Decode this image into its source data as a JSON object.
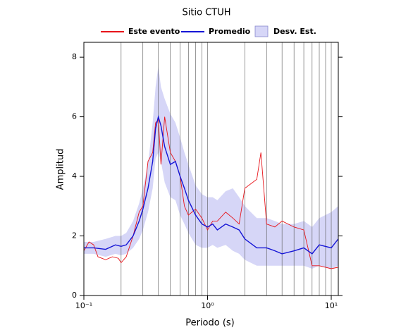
{
  "chart_data": {
    "type": "line",
    "title": "Sitio CTUH",
    "x_label": "Periodo (s)",
    "y_label": "Amplitud",
    "xscale": "log",
    "xlim": [
      0.1,
      11.4
    ],
    "ylim": [
      0,
      8.5
    ],
    "grid": "x",
    "xticks": [
      {
        "value": 0.1,
        "label": "10⁻¹"
      },
      {
        "value": 1,
        "label": "10⁰"
      },
      {
        "value": 10,
        "label": "10¹"
      }
    ],
    "xminor": [
      0.2,
      0.3,
      0.4,
      0.5,
      0.6,
      0.7,
      0.8,
      0.9,
      2,
      3,
      4,
      5,
      6,
      7,
      8,
      9
    ],
    "yticks": [
      0,
      2,
      4,
      6,
      8
    ],
    "x": [
      0.1,
      0.12,
      0.15,
      0.18,
      0.2,
      0.22,
      0.25,
      0.28,
      0.3,
      0.33,
      0.36,
      0.38,
      0.4,
      0.42,
      0.45,
      0.5,
      0.55,
      0.6,
      0.65,
      0.7,
      0.8,
      0.9,
      1.0,
      1.1,
      1.2,
      1.4,
      1.6,
      1.8,
      2.0,
      2.5,
      3.0,
      3.5,
      4.0,
      5.0,
      6.0,
      7.0,
      8.0,
      10,
      11.4
    ],
    "band": {
      "name": "Desv. Est.",
      "color": "#d6d6f7",
      "lower": [
        1.4,
        1.4,
        1.3,
        1.4,
        1.35,
        1.4,
        1.6,
        1.9,
        2.2,
        2.8,
        3.6,
        4.6,
        4.8,
        4.5,
        3.8,
        3.3,
        3.2,
        2.7,
        2.4,
        2.1,
        1.7,
        1.6,
        1.6,
        1.7,
        1.6,
        1.7,
        1.5,
        1.4,
        1.2,
        1.0,
        1.0,
        1.0,
        1.0,
        1.0,
        1.0,
        0.9,
        1.0,
        0.9,
        1.0
      ],
      "upper": [
        1.8,
        1.8,
        1.9,
        2.0,
        2.0,
        2.1,
        2.5,
        3.1,
        3.6,
        4.4,
        5.8,
        7.0,
        7.7,
        7.0,
        6.6,
        6.1,
        5.8,
        5.3,
        4.8,
        4.4,
        3.7,
        3.4,
        3.3,
        3.3,
        3.2,
        3.5,
        3.6,
        3.3,
        3.0,
        2.6,
        2.6,
        2.5,
        2.4,
        2.4,
        2.5,
        2.3,
        2.6,
        2.8,
        3.0
      ]
    },
    "series": [
      {
        "name": "Este evento",
        "color": "#e8141a",
        "x": [
          0.1,
          0.11,
          0.12,
          0.13,
          0.15,
          0.17,
          0.19,
          0.2,
          0.22,
          0.25,
          0.28,
          0.3,
          0.33,
          0.36,
          0.38,
          0.4,
          0.42,
          0.45,
          0.5,
          0.55,
          0.6,
          0.65,
          0.7,
          0.8,
          0.9,
          1.0,
          1.1,
          1.2,
          1.4,
          1.6,
          1.8,
          2.0,
          2.5,
          2.7,
          3.0,
          3.5,
          4.0,
          5.0,
          6.0,
          7.0,
          8.0,
          10,
          11.4
        ],
        "values": [
          1.5,
          1.8,
          1.7,
          1.3,
          1.2,
          1.3,
          1.25,
          1.1,
          1.3,
          2.0,
          2.8,
          3.0,
          4.5,
          4.8,
          5.8,
          5.9,
          4.4,
          6.0,
          4.8,
          4.5,
          4.0,
          3.0,
          2.7,
          2.9,
          2.6,
          2.2,
          2.5,
          2.5,
          2.8,
          2.6,
          2.4,
          3.6,
          3.9,
          4.8,
          2.4,
          2.3,
          2.5,
          2.3,
          2.2,
          1.0,
          1.0,
          0.9,
          0.95
        ]
      },
      {
        "name": "Promedio",
        "color": "#1515d6",
        "values": [
          1.6,
          1.6,
          1.55,
          1.7,
          1.65,
          1.7,
          2.0,
          2.5,
          2.9,
          3.6,
          4.5,
          5.6,
          6.0,
          5.7,
          5.0,
          4.4,
          4.5,
          4.0,
          3.6,
          3.2,
          2.7,
          2.4,
          2.3,
          2.4,
          2.2,
          2.4,
          2.3,
          2.2,
          1.9,
          1.6,
          1.6,
          1.5,
          1.4,
          1.5,
          1.6,
          1.4,
          1.7,
          1.6,
          1.9
        ]
      }
    ]
  }
}
